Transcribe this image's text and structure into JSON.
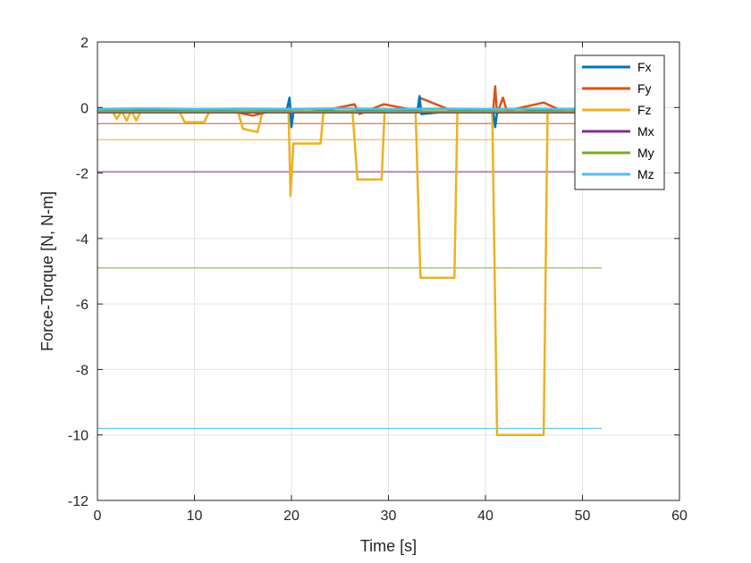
{
  "chart_data": {
    "type": "line",
    "title": "",
    "xlabel": "Time [s]",
    "ylabel": "Force-Torque [N, N-m]",
    "xlim": [
      0,
      60
    ],
    "ylim": [
      -12,
      2
    ],
    "x_ticks": [
      0,
      10,
      20,
      30,
      40,
      50,
      60
    ],
    "y_ticks": [
      -12,
      -10,
      -8,
      -6,
      -4,
      -2,
      0,
      2
    ],
    "grid": true,
    "legend_position": "top-right",
    "series": [
      {
        "name": "Fx",
        "color": "#0072BD",
        "x": [
          0,
          2,
          5,
          8,
          12,
          15,
          19.5,
          19.8,
          20.0,
          20.2,
          23,
          26,
          29,
          33,
          33.2,
          33.4,
          37,
          40.8,
          41.0,
          41.2,
          45,
          46,
          48,
          52
        ],
        "y": [
          -0.1,
          -0.12,
          -0.08,
          -0.1,
          -0.1,
          -0.12,
          -0.1,
          0.3,
          -0.6,
          -0.15,
          -0.1,
          -0.12,
          -0.08,
          -0.1,
          0.35,
          -0.2,
          -0.1,
          -0.1,
          -0.6,
          -0.15,
          -0.1,
          -0.1,
          -0.12,
          -0.1
        ]
      },
      {
        "name": "Fy",
        "color": "#D95319",
        "x": [
          0,
          3,
          6,
          10,
          14,
          16,
          18,
          20,
          23,
          26.5,
          27,
          29.5,
          33,
          33.2,
          37,
          40.8,
          41.0,
          41.2,
          41.8,
          42.2,
          46,
          48,
          52
        ],
        "y": [
          -0.12,
          -0.1,
          -0.15,
          -0.1,
          -0.12,
          -0.25,
          -0.1,
          -0.15,
          -0.12,
          0.1,
          -0.2,
          0.1,
          -0.1,
          0.3,
          -0.15,
          -0.1,
          0.65,
          -0.2,
          0.3,
          -0.1,
          0.15,
          -0.12,
          -0.1
        ]
      },
      {
        "name": "Fz",
        "color": "#EDB120",
        "x": [
          0,
          1.5,
          2,
          2.5,
          3,
          3.5,
          4,
          4.5,
          5,
          8.5,
          9,
          11,
          11.5,
          14.5,
          15,
          16.5,
          17,
          19.7,
          19.9,
          20.2,
          23,
          23.3,
          26.3,
          26.8,
          29.3,
          29.6,
          32.8,
          33.3,
          36.8,
          37.1,
          40.7,
          41.2,
          46.0,
          46.4,
          48,
          52
        ],
        "y": [
          -0.1,
          -0.1,
          -0.35,
          -0.1,
          -0.4,
          -0.1,
          -0.4,
          -0.1,
          -0.15,
          -0.15,
          -0.45,
          -0.45,
          -0.15,
          -0.15,
          -0.65,
          -0.75,
          -0.15,
          -0.15,
          -2.7,
          -1.1,
          -1.1,
          -0.15,
          -0.15,
          -2.2,
          -2.2,
          -0.15,
          -0.15,
          -5.2,
          -5.2,
          -0.15,
          -0.15,
          -10.0,
          -10.0,
          -0.15,
          -0.15,
          -0.15
        ]
      },
      {
        "name": "Mx",
        "color": "#7E2F8E",
        "x": [
          0,
          10,
          20,
          30,
          40,
          52
        ],
        "y": [
          -0.15,
          -0.15,
          -0.15,
          -0.15,
          -0.15,
          -0.15
        ]
      },
      {
        "name": "My",
        "color": "#77AC30",
        "x": [
          0,
          10,
          20,
          30,
          40,
          52
        ],
        "y": [
          -0.12,
          -0.12,
          -0.12,
          -0.12,
          -0.12,
          -0.12
        ]
      },
      {
        "name": "Mz",
        "color": "#4DBEEE",
        "x": [
          0,
          5,
          10,
          15,
          20,
          25,
          30,
          35,
          40,
          45,
          52
        ],
        "y": [
          -0.05,
          -0.03,
          -0.05,
          -0.04,
          -0.05,
          -0.03,
          -0.05,
          -0.04,
          -0.05,
          -0.04,
          -0.05
        ]
      }
    ],
    "reference_lines": [
      {
        "color": "#D95319",
        "y": -0.49
      },
      {
        "color": "#EDB120",
        "y": -0.98
      },
      {
        "color": "#7E2F8E",
        "y": -1.96
      },
      {
        "color": "#77AC30",
        "y": -4.9
      },
      {
        "color": "#4DBEEE",
        "y": -9.8
      }
    ],
    "reference_xlim": [
      0,
      52
    ]
  }
}
